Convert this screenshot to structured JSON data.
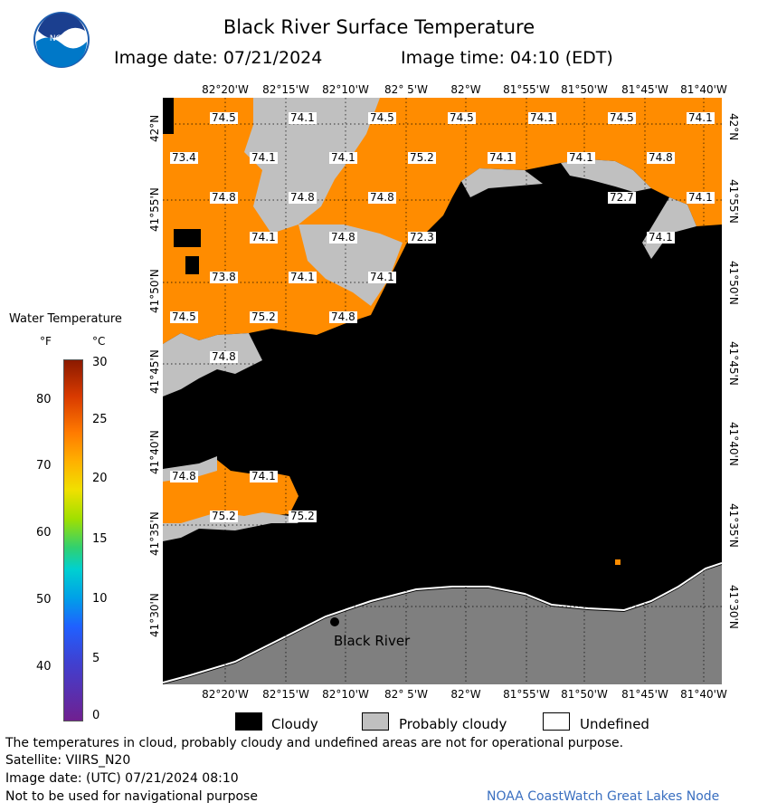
{
  "header": {
    "title": "Black River Surface Temperature",
    "image_date": "Image date: 07/21/2024",
    "image_time": "Image time: 04:10 (EDT)",
    "logo_text": "NOAA"
  },
  "map": {
    "lon_labels": [
      "82°20'W",
      "82°15'W",
      "82°10'W",
      "82° 5'W",
      "82°W",
      "81°55'W",
      "81°50'W",
      "81°45'W",
      "81°40'W"
    ],
    "lat_labels": [
      "42°N",
      "41°55'N",
      "41°50'N",
      "41°45'N",
      "41°40'N",
      "41°35'N",
      "41°30'N"
    ],
    "temp_labels": [
      "74.5",
      "74.1",
      "74.5",
      "74.5",
      "74.1",
      "74.5",
      "74.1",
      "73.4",
      "74.1",
      "74.1",
      "75.2",
      "74.1",
      "74.1",
      "74.8",
      "74.8",
      "74.8",
      "74.8",
      "72.7",
      "74.1",
      "74.1",
      "74.8",
      "72.3",
      "74.1",
      "73.8",
      "74.1",
      "74.1",
      "74.5",
      "75.2",
      "74.8",
      "74.8",
      "74.8",
      "74.1",
      "75.2",
      "75.2"
    ],
    "place_label": "Black River",
    "colors": {
      "water": "#ff8c00",
      "cloud": "#000000",
      "probably_cloudy": "#c0c0c0",
      "land": "#7f7f7f"
    }
  },
  "scale": {
    "title": "Water Temperature",
    "unit_f": "°F",
    "unit_c": "°C",
    "f_ticks": [
      "80",
      "70",
      "60",
      "50",
      "40"
    ],
    "c_ticks": [
      "30",
      "25",
      "20",
      "15",
      "10",
      "5",
      "0"
    ]
  },
  "legend": {
    "cloudy": "Cloudy",
    "probably_cloudy": "Probably cloudy",
    "undefined": "Undefined"
  },
  "footer": {
    "disclaimer": "The temperatures in cloud, probably cloudy and undefined areas are not for operational purpose.",
    "satellite": "Satellite: VIIRS_N20",
    "utc_date": "Image date: (UTC) 07/21/2024  08:10",
    "navigation": "Not to be used for navigational purpose",
    "credit": "NOAA CoastWatch Great Lakes Node"
  }
}
